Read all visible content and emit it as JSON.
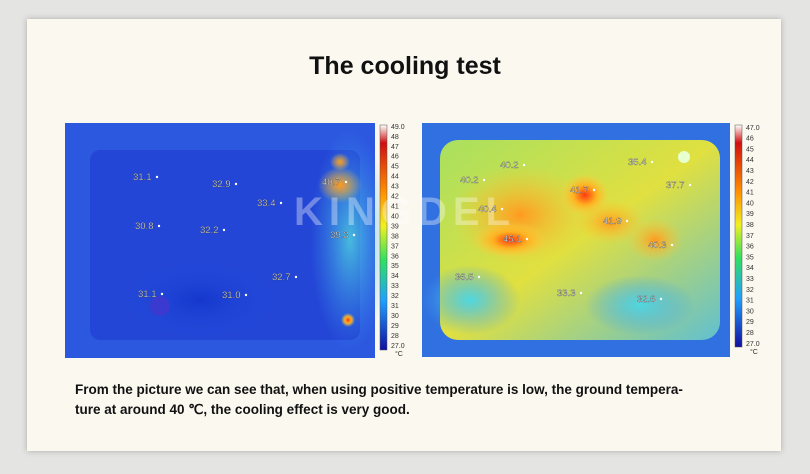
{
  "header": {
    "title": "The cooling test"
  },
  "watermark": "KINGDEL",
  "images": [
    {
      "readings": [
        "31.1",
        "32.9",
        "40.7",
        "33.4",
        "30.8",
        "32.2",
        "39.3",
        "32.7",
        "31.1",
        "31.0"
      ],
      "scale": [
        "49.0",
        "48",
        "47",
        "46",
        "45",
        "44",
        "43",
        "42",
        "41",
        "40",
        "39",
        "38",
        "37",
        "36",
        "35",
        "34",
        "33",
        "32",
        "31",
        "30",
        "29",
        "28",
        "27.0"
      ],
      "unit": "°C"
    },
    {
      "readings": [
        "40.2",
        "35.4",
        "40.2",
        "37.7",
        "41.7",
        "40.4",
        "41.9",
        "45.1",
        "40.3",
        "36.5",
        "33.3",
        "32.6"
      ],
      "scale": [
        "47.0",
        "46",
        "45",
        "44",
        "43",
        "42",
        "41",
        "40",
        "39",
        "38",
        "37",
        "36",
        "35",
        "34",
        "33",
        "32",
        "31",
        "30",
        "29",
        "28",
        "27.0"
      ],
      "unit": "°C"
    }
  ],
  "caption": {
    "lines": [
      "From the picture we can see that, when using positive temperature is low, the ground tempera-",
      "ture at around 40 ℃, the cooling effect is very good."
    ]
  }
}
